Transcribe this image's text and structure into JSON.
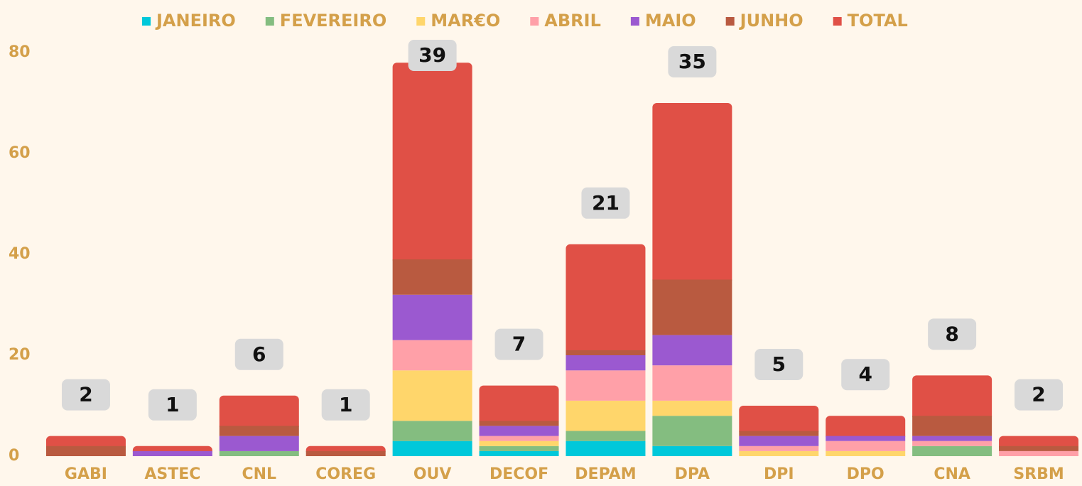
{
  "chart_data": {
    "type": "stacked_bar",
    "categories": [
      "GABI",
      "ASTEC",
      "CNL",
      "COREG",
      "OUV",
      "DECOF",
      "DEPAM",
      "DPA",
      "DPI",
      "DPO",
      "CNA",
      "SRBM"
    ],
    "series": [
      {
        "name": "JANEIRO",
        "color": "#00c8da",
        "values": [
          0,
          0,
          0,
          0,
          3,
          1,
          3,
          2,
          0,
          0,
          0,
          0
        ]
      },
      {
        "name": "FEVEREIRO",
        "color": "#84bd80",
        "values": [
          0,
          0,
          1,
          0,
          4,
          1,
          2,
          6,
          0,
          0,
          2,
          0
        ]
      },
      {
        "name": "MAR€O",
        "color": "#ffd66b",
        "values": [
          0,
          0,
          0,
          0,
          10,
          1,
          6,
          3,
          1,
          1,
          0,
          0
        ]
      },
      {
        "name": "ABRIL",
        "color": "#ffa0a8",
        "values": [
          0,
          0,
          0,
          0,
          6,
          1,
          6,
          7,
          1,
          2,
          1,
          1
        ]
      },
      {
        "name": "MAIO",
        "color": "#9b59d0",
        "values": [
          0,
          1,
          3,
          0,
          9,
          2,
          3,
          6,
          2,
          1,
          1,
          0
        ]
      },
      {
        "name": "JUNHO",
        "color": "#b95a40",
        "values": [
          2,
          0,
          2,
          1,
          7,
          1,
          1,
          11,
          1,
          0,
          4,
          1
        ]
      },
      {
        "name": "TOTAL",
        "color": "#e05046",
        "values": [
          2,
          1,
          6,
          1,
          39,
          7,
          21,
          35,
          5,
          4,
          8,
          2
        ]
      }
    ],
    "ylim": [
      0,
      80
    ],
    "yticks": [
      0,
      20,
      40,
      60,
      80
    ],
    "grid": false,
    "legend": "top"
  }
}
